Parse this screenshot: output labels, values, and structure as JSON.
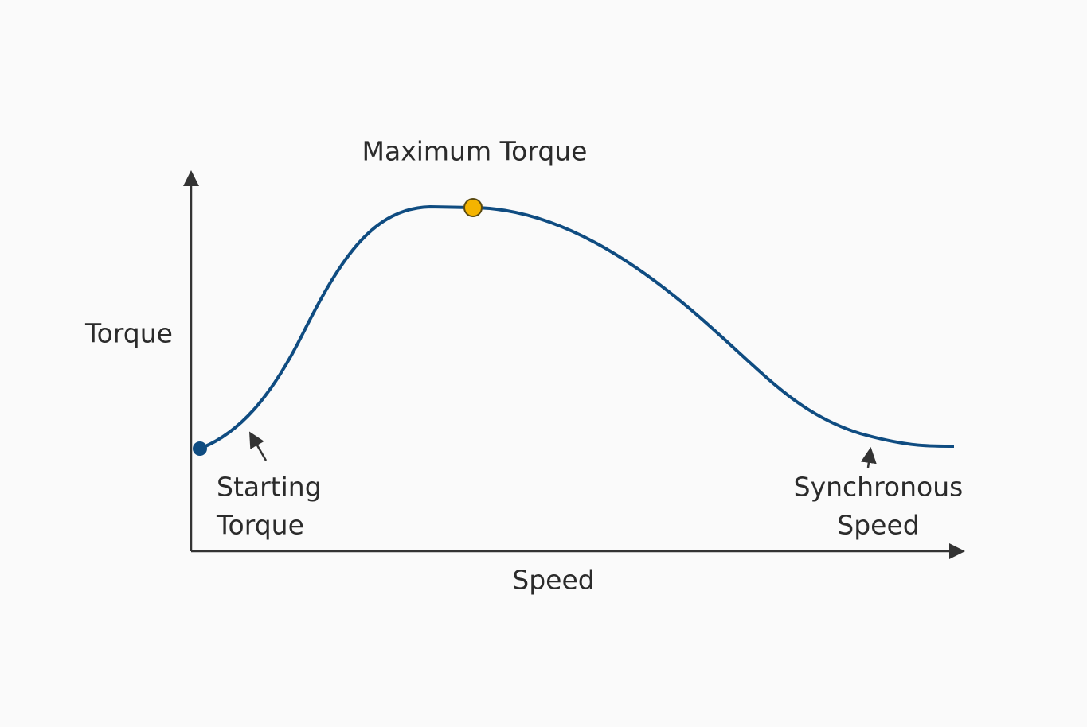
{
  "axes": {
    "y_label": "Torque",
    "x_label": "Speed"
  },
  "annotations": {
    "maximum": "Maximum Torque",
    "starting": [
      "Starting",
      "Torque"
    ],
    "synchronous": [
      "Synchronous",
      "Speed"
    ]
  }
}
